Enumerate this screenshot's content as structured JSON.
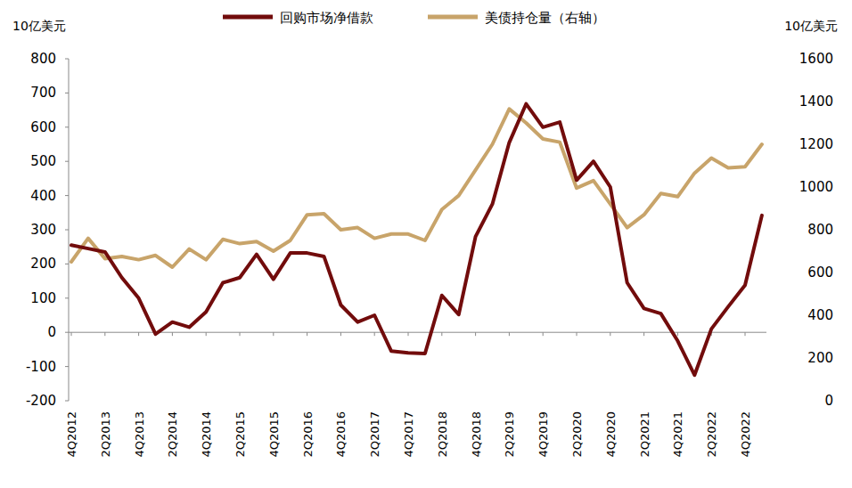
{
  "chart_data": {
    "type": "line",
    "ylabel": "10亿美元",
    "y2label": "10亿美元",
    "categories": [
      "4Q2012",
      null,
      "2Q2013",
      null,
      "4Q2013",
      null,
      "2Q2014",
      null,
      "4Q2014",
      null,
      "2Q2015",
      null,
      "4Q2015",
      null,
      "2Q2016",
      null,
      "4Q2016",
      null,
      "2Q2017",
      null,
      "4Q2017",
      null,
      "2Q2018",
      null,
      "4Q2018",
      null,
      "2Q2019",
      null,
      "4Q2019",
      null,
      "2Q2020",
      null,
      "4Q2020",
      null,
      "2Q2021",
      null,
      "4Q2021",
      null,
      "2Q2022",
      null,
      "4Q2022",
      null
    ],
    "series": [
      {
        "name": "回购市场净借款",
        "color": "#720c0c",
        "values": [
          255,
          245,
          235,
          160,
          100,
          -5,
          30,
          15,
          60,
          145,
          160,
          228,
          155,
          232,
          232,
          222,
          80,
          30,
          50,
          -55,
          -60,
          -62,
          108,
          52,
          280,
          375,
          555,
          668,
          600,
          615,
          445,
          500,
          425,
          145,
          70,
          55,
          -25,
          -125,
          10,
          75,
          138,
          342
        ]
      },
      {
        "name": "美债持仓量（右轴）",
        "color": "#c8a46a",
        "axis": "y2",
        "values": [
          650,
          760,
          665,
          675,
          660,
          680,
          625,
          710,
          660,
          755,
          735,
          745,
          700,
          750,
          870,
          875,
          800,
          810,
          760,
          780,
          780,
          750,
          895,
          960,
          1080,
          1200,
          1365,
          1300,
          1225,
          1210,
          995,
          1030,
          920,
          810,
          870,
          970,
          955,
          1065,
          1135,
          1090,
          1095,
          1200
        ]
      }
    ],
    "ylim": [
      -200,
      800
    ],
    "yticks": [
      -200,
      -100,
      0,
      100,
      200,
      300,
      400,
      500,
      600,
      700,
      800
    ],
    "y2lim": [
      0,
      1600
    ],
    "y2ticks": [
      0,
      200,
      400,
      600,
      800,
      1000,
      1200,
      1400,
      1600
    ],
    "grid": false,
    "legend": "top"
  }
}
